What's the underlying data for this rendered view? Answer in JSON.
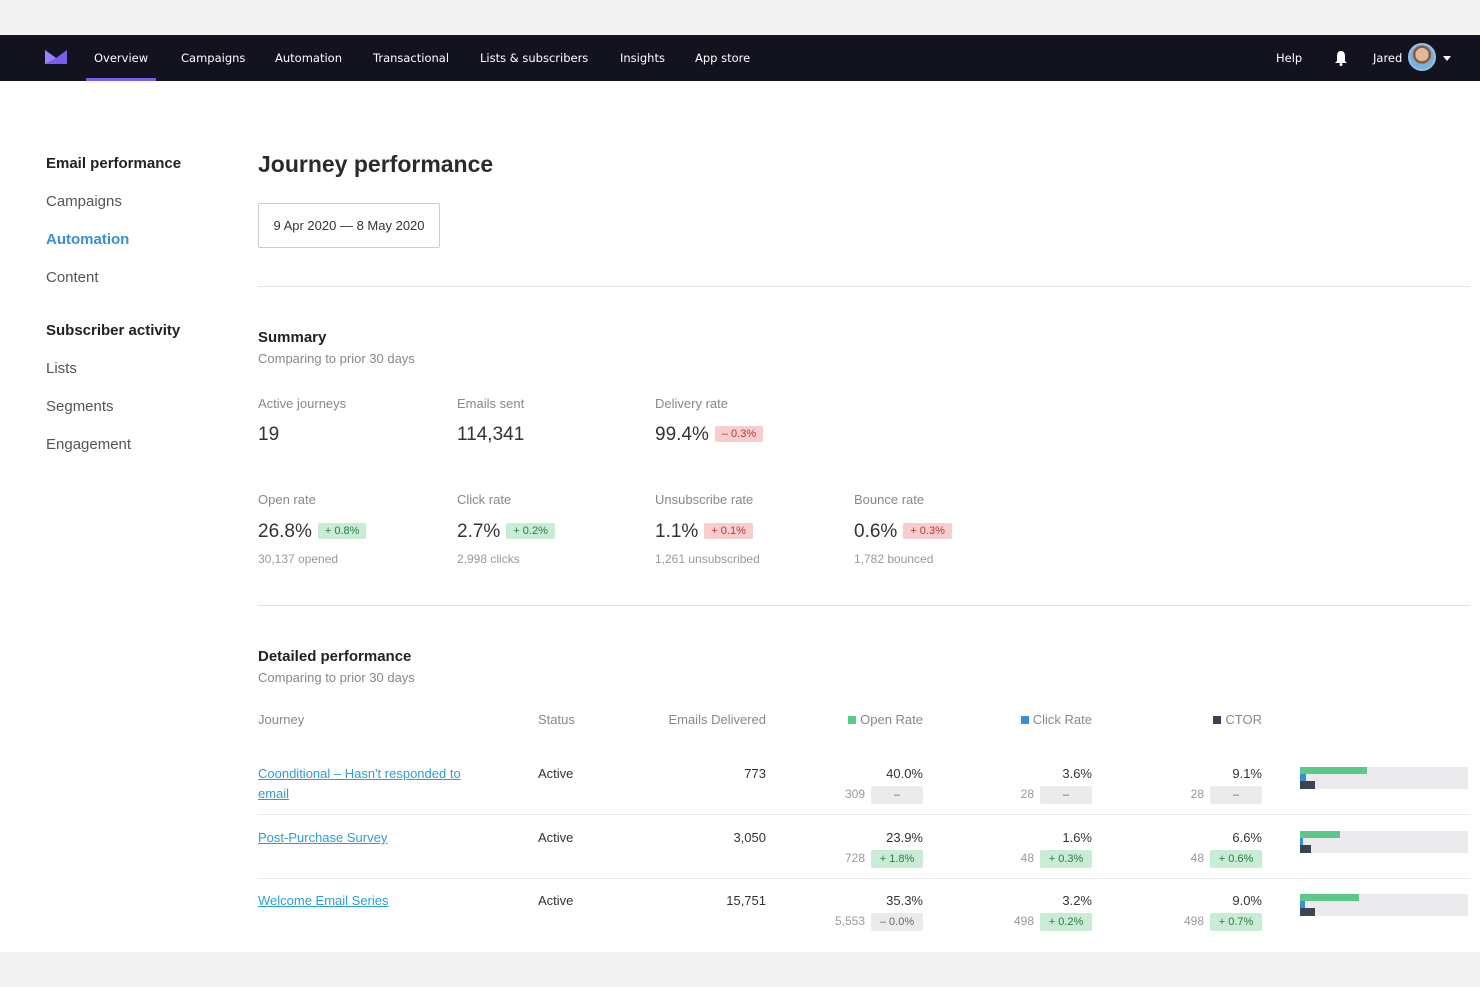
{
  "nav": {
    "items": [
      "Overview",
      "Campaigns",
      "Automation",
      "Transactional",
      "Lists & subscribers",
      "Insights",
      "App store"
    ],
    "active": "Overview",
    "help": "Help",
    "user": "Jared"
  },
  "sidebar": {
    "groups": [
      {
        "heading": "Email performance",
        "items": [
          "Campaigns",
          "Automation",
          "Content"
        ]
      },
      {
        "heading": "Subscriber activity",
        "items": [
          "Lists",
          "Segments",
          "Engagement"
        ]
      }
    ],
    "selected": "Automation"
  },
  "page": {
    "title": "Journey performance",
    "date_range": "9 Apr 2020 — 8 May 2020"
  },
  "summary": {
    "title": "Summary",
    "subtitle": "Comparing to prior 30 days",
    "row1": [
      {
        "label": "Active journeys",
        "value": "19"
      },
      {
        "label": "Emails sent",
        "value": "114,341"
      },
      {
        "label": "Delivery rate",
        "value": "99.4%",
        "change": "–  0.3%",
        "trend": "down"
      }
    ],
    "row2": [
      {
        "label": "Open rate",
        "value": "26.8%",
        "change": "+  0.8%",
        "trend": "up",
        "sub": "30,137 opened"
      },
      {
        "label": "Click rate",
        "value": "2.7%",
        "change": "+  0.2%",
        "trend": "up",
        "sub": "2,998 clicks"
      },
      {
        "label": "Unsubscribe rate",
        "value": "1.1%",
        "change": "+  0.1%",
        "trend": "down",
        "sub": "1,261 unsubscribed"
      },
      {
        "label": "Bounce rate",
        "value": "0.6%",
        "change": "+  0.3%",
        "trend": "down",
        "sub": "1,782 bounced"
      }
    ]
  },
  "detailed": {
    "title": "Detailed performance",
    "subtitle": "Comparing to prior 30 days",
    "columns": [
      "Journey",
      "Status",
      "Emails Delivered",
      "Open Rate",
      "Click Rate",
      "CTOR"
    ],
    "colors": {
      "open": "#5cc98a",
      "click": "#3a8ed6",
      "ctor": "#3a4455"
    },
    "rows": [
      {
        "journey": "Coonditional – Hasn't responded to email",
        "status": "Active",
        "delivered": "773",
        "open": "40.0%",
        "open_n": "309",
        "open_c": "–",
        "open_t": "neu",
        "click": "3.6%",
        "click_n": "28",
        "click_c": "–",
        "click_t": "neu",
        "ctor": "9.1%",
        "ctor_n": "28",
        "ctor_c": "–",
        "ctor_t": "neu",
        "bars": [
          40.0,
          3.6,
          9.1
        ]
      },
      {
        "journey": "Post-Purchase Survey",
        "status": "Active",
        "delivered": "3,050",
        "open": "23.9%",
        "open_n": "728",
        "open_c": "+  1.8%",
        "open_t": "up",
        "click": "1.6%",
        "click_n": "48",
        "click_c": "+  0.3%",
        "click_t": "up",
        "ctor": "6.6%",
        "ctor_n": "48",
        "ctor_c": "+  0.6%",
        "ctor_t": "up",
        "bars": [
          23.9,
          1.6,
          6.6
        ]
      },
      {
        "journey": "Welcome Email Series",
        "status": "Active",
        "delivered": "15,751",
        "open": "35.3%",
        "open_n": "5,553",
        "open_c": "–  0.0%",
        "open_t": "neu",
        "click": "3.2%",
        "click_n": "498",
        "click_c": "+  0.2%",
        "click_t": "up",
        "ctor": "9.0%",
        "ctor_n": "498",
        "ctor_c": "+  0.7%",
        "ctor_t": "up",
        "bars": [
          35.3,
          3.2,
          9.0
        ]
      }
    ]
  }
}
